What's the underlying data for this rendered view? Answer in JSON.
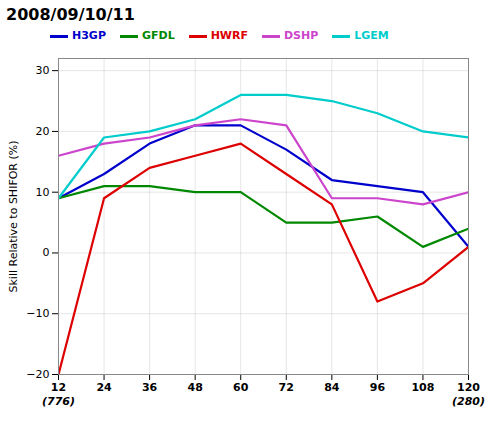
{
  "chart_data": {
    "type": "line",
    "title": "2008/09/10/11",
    "y_label": "Skill Relative to SHIFOR (%)",
    "x": [
      12,
      24,
      36,
      48,
      60,
      72,
      84,
      96,
      108,
      120
    ],
    "series": [
      {
        "name": "H3GP",
        "color": "#0000cc",
        "values": [
          9,
          13,
          18,
          21,
          21,
          17,
          12,
          11,
          10,
          1
        ]
      },
      {
        "name": "GFDL",
        "color": "#008800",
        "values": [
          9,
          11,
          11,
          10,
          10,
          5,
          5,
          6,
          1,
          4
        ]
      },
      {
        "name": "HWRF",
        "color": "#dd0000",
        "values": [
          -20,
          9,
          14,
          16,
          18,
          13,
          8,
          -8,
          -5,
          1
        ]
      },
      {
        "name": "DSHP",
        "color": "#cc44cc",
        "values": [
          16,
          18,
          19,
          21,
          22,
          21,
          9,
          9,
          8,
          10
        ]
      },
      {
        "name": "LGEM",
        "color": "#00cccc",
        "values": [
          9,
          19,
          20,
          22,
          26,
          26,
          25,
          23,
          20,
          19
        ]
      }
    ],
    "xlim": [
      12,
      120
    ],
    "xticks": [
      12,
      24,
      36,
      48,
      60,
      72,
      84,
      96,
      108,
      120
    ],
    "ylim": [
      -20,
      32
    ],
    "yticks": [
      -20,
      -10,
      0,
      10,
      20,
      30
    ],
    "annotations": [
      {
        "text": "(776)",
        "x": 12
      },
      {
        "text": "(280)",
        "x": 120
      }
    ],
    "grid": true,
    "legend": "top"
  }
}
